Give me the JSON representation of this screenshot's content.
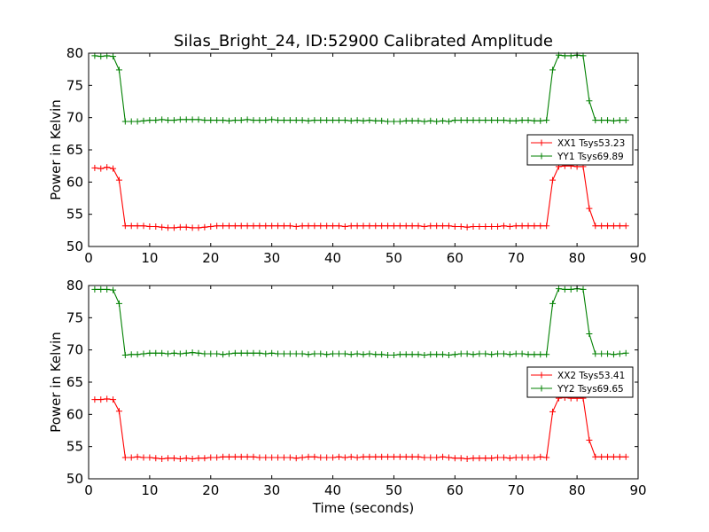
{
  "title": "Silas_Bright_24, ID:52900 Calibrated Amplitude",
  "xlabel": "Time (seconds)",
  "chart_data": [
    {
      "type": "line",
      "ylabel": "Power in Kelvin",
      "xlim": [
        0,
        90
      ],
      "ylim": [
        50,
        80
      ],
      "xticks": [
        "0",
        "10",
        "20",
        "30",
        "40",
        "50",
        "60",
        "70",
        "80",
        "90"
      ],
      "yticks": [
        "50",
        "55",
        "60",
        "65",
        "70",
        "75",
        "80"
      ],
      "grid": false,
      "legend_position": "center-right",
      "x": [
        1,
        2,
        3,
        4,
        5,
        6,
        7,
        8,
        9,
        10,
        11,
        12,
        13,
        14,
        15,
        16,
        17,
        18,
        19,
        20,
        21,
        22,
        23,
        24,
        25,
        26,
        27,
        28,
        29,
        30,
        31,
        32,
        33,
        34,
        35,
        36,
        37,
        38,
        39,
        40,
        41,
        42,
        43,
        44,
        45,
        46,
        47,
        48,
        49,
        50,
        51,
        52,
        53,
        54,
        55,
        56,
        57,
        58,
        59,
        60,
        61,
        62,
        63,
        64,
        65,
        66,
        67,
        68,
        69,
        70,
        71,
        72,
        73,
        74,
        75,
        76,
        77,
        78,
        79,
        80,
        81,
        82,
        83,
        84,
        85,
        86,
        87,
        88
      ],
      "series": [
        {
          "name": "XX1 Tsys53.23",
          "color": "#ff0000",
          "values": [
            62.2,
            62.1,
            62.3,
            62.1,
            60.3,
            53.2,
            53.2,
            53.2,
            53.2,
            53.1,
            53.1,
            53.0,
            52.9,
            52.9,
            53.0,
            53.0,
            52.9,
            52.9,
            53.0,
            53.1,
            53.2,
            53.2,
            53.2,
            53.2,
            53.2,
            53.2,
            53.2,
            53.2,
            53.2,
            53.2,
            53.2,
            53.2,
            53.2,
            53.1,
            53.2,
            53.2,
            53.2,
            53.2,
            53.2,
            53.2,
            53.2,
            53.1,
            53.2,
            53.2,
            53.2,
            53.2,
            53.2,
            53.2,
            53.2,
            53.2,
            53.2,
            53.2,
            53.2,
            53.2,
            53.1,
            53.2,
            53.2,
            53.2,
            53.2,
            53.1,
            53.1,
            53.0,
            53.1,
            53.1,
            53.1,
            53.1,
            53.1,
            53.2,
            53.1,
            53.2,
            53.2,
            53.2,
            53.2,
            53.2,
            53.2,
            60.3,
            62.4,
            62.5,
            62.5,
            62.4,
            62.4,
            55.9,
            53.2,
            53.2,
            53.2,
            53.2,
            53.2,
            53.2
          ]
        },
        {
          "name": "YY1 Tsys69.89",
          "color": "#008000",
          "values": [
            79.6,
            79.5,
            79.6,
            79.5,
            77.4,
            69.4,
            69.4,
            69.4,
            69.5,
            69.6,
            69.6,
            69.7,
            69.6,
            69.6,
            69.7,
            69.7,
            69.7,
            69.7,
            69.6,
            69.6,
            69.6,
            69.6,
            69.5,
            69.6,
            69.6,
            69.7,
            69.6,
            69.6,
            69.6,
            69.7,
            69.6,
            69.6,
            69.6,
            69.6,
            69.6,
            69.5,
            69.6,
            69.6,
            69.6,
            69.6,
            69.6,
            69.6,
            69.5,
            69.6,
            69.5,
            69.6,
            69.5,
            69.5,
            69.4,
            69.4,
            69.4,
            69.5,
            69.5,
            69.5,
            69.4,
            69.5,
            69.4,
            69.5,
            69.4,
            69.6,
            69.6,
            69.6,
            69.6,
            69.6,
            69.6,
            69.6,
            69.6,
            69.6,
            69.5,
            69.5,
            69.6,
            69.6,
            69.5,
            69.5,
            69.6,
            77.4,
            79.7,
            79.6,
            79.6,
            79.7,
            79.6,
            72.6,
            69.6,
            69.6,
            69.6,
            69.5,
            69.6,
            69.6
          ]
        }
      ]
    },
    {
      "type": "line",
      "ylabel": "Power in Kelvin",
      "xlim": [
        0,
        90
      ],
      "ylim": [
        50,
        80
      ],
      "xticks": [
        "0",
        "10",
        "20",
        "30",
        "40",
        "50",
        "60",
        "70",
        "80",
        "90"
      ],
      "yticks": [
        "50",
        "55",
        "60",
        "65",
        "70",
        "75",
        "80"
      ],
      "grid": false,
      "legend_position": "center-right",
      "x": [
        1,
        2,
        3,
        4,
        5,
        6,
        7,
        8,
        9,
        10,
        11,
        12,
        13,
        14,
        15,
        16,
        17,
        18,
        19,
        20,
        21,
        22,
        23,
        24,
        25,
        26,
        27,
        28,
        29,
        30,
        31,
        32,
        33,
        34,
        35,
        36,
        37,
        38,
        39,
        40,
        41,
        42,
        43,
        44,
        45,
        46,
        47,
        48,
        49,
        50,
        51,
        52,
        53,
        54,
        55,
        56,
        57,
        58,
        59,
        60,
        61,
        62,
        63,
        64,
        65,
        66,
        67,
        68,
        69,
        70,
        71,
        72,
        73,
        74,
        75,
        76,
        77,
        78,
        79,
        80,
        81,
        82,
        83,
        84,
        85,
        86,
        87,
        88
      ],
      "series": [
        {
          "name": "XX2 Tsys53.41",
          "color": "#ff0000",
          "values": [
            62.3,
            62.3,
            62.4,
            62.3,
            60.5,
            53.3,
            53.3,
            53.4,
            53.3,
            53.3,
            53.2,
            53.1,
            53.2,
            53.2,
            53.1,
            53.2,
            53.1,
            53.2,
            53.2,
            53.3,
            53.3,
            53.4,
            53.4,
            53.4,
            53.4,
            53.4,
            53.4,
            53.3,
            53.3,
            53.3,
            53.3,
            53.3,
            53.3,
            53.2,
            53.3,
            53.4,
            53.4,
            53.3,
            53.3,
            53.3,
            53.4,
            53.3,
            53.4,
            53.3,
            53.4,
            53.4,
            53.4,
            53.4,
            53.4,
            53.4,
            53.4,
            53.4,
            53.4,
            53.4,
            53.3,
            53.3,
            53.3,
            53.4,
            53.3,
            53.2,
            53.2,
            53.1,
            53.2,
            53.2,
            53.2,
            53.2,
            53.3,
            53.3,
            53.2,
            53.3,
            53.3,
            53.3,
            53.3,
            53.4,
            53.3,
            60.4,
            62.5,
            62.6,
            62.5,
            62.5,
            62.5,
            56.0,
            53.4,
            53.4,
            53.4,
            53.4,
            53.4,
            53.4
          ]
        },
        {
          "name": "YY2 Tsys69.65",
          "color": "#008000",
          "values": [
            79.4,
            79.4,
            79.4,
            79.3,
            77.2,
            69.2,
            69.3,
            69.3,
            69.4,
            69.5,
            69.5,
            69.5,
            69.4,
            69.5,
            69.4,
            69.5,
            69.6,
            69.5,
            69.4,
            69.4,
            69.4,
            69.3,
            69.4,
            69.5,
            69.5,
            69.5,
            69.5,
            69.5,
            69.4,
            69.5,
            69.4,
            69.4,
            69.4,
            69.4,
            69.4,
            69.3,
            69.4,
            69.4,
            69.3,
            69.4,
            69.4,
            69.4,
            69.3,
            69.4,
            69.3,
            69.4,
            69.3,
            69.3,
            69.2,
            69.2,
            69.3,
            69.3,
            69.3,
            69.3,
            69.2,
            69.3,
            69.3,
            69.3,
            69.2,
            69.3,
            69.4,
            69.4,
            69.3,
            69.4,
            69.4,
            69.3,
            69.4,
            69.4,
            69.3,
            69.4,
            69.4,
            69.3,
            69.3,
            69.3,
            69.3,
            77.2,
            79.5,
            79.4,
            79.4,
            79.5,
            79.4,
            72.5,
            69.4,
            69.4,
            69.4,
            69.3,
            69.4,
            69.5
          ]
        }
      ]
    }
  ]
}
